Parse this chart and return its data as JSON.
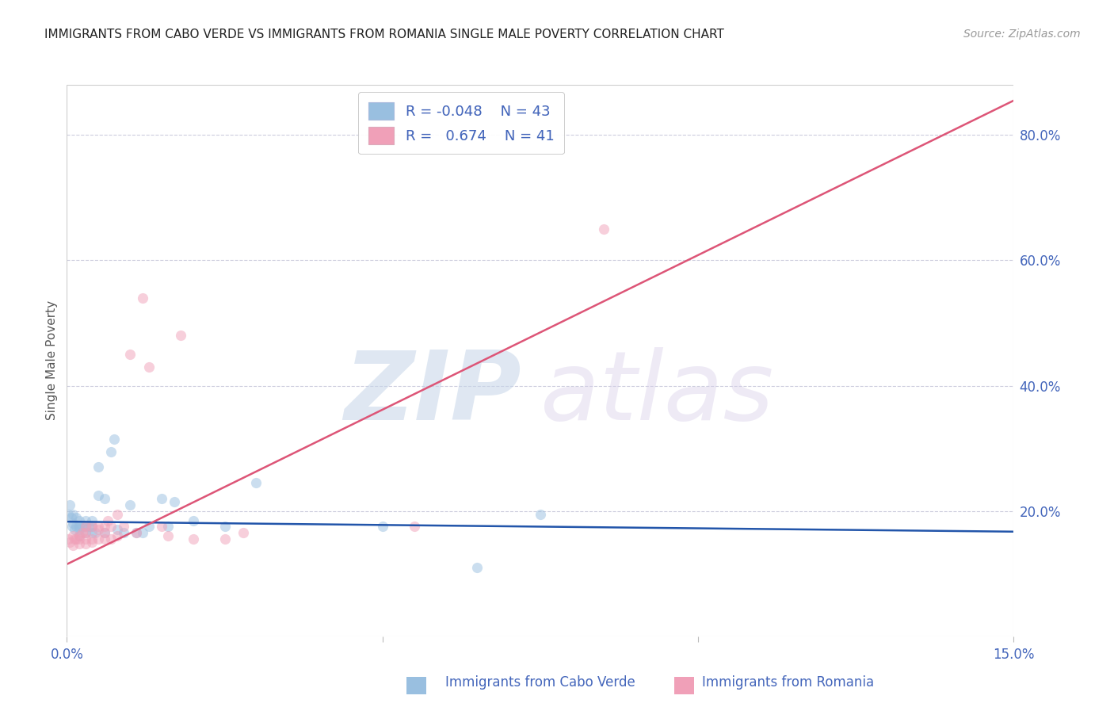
{
  "title": "IMMIGRANTS FROM CABO VERDE VS IMMIGRANTS FROM ROMANIA SINGLE MALE POVERTY CORRELATION CHART",
  "source": "Source: ZipAtlas.com",
  "ylabel": "Single Male Poverty",
  "right_yticks": [
    "80.0%",
    "60.0%",
    "40.0%",
    "20.0%"
  ],
  "right_ytick_vals": [
    0.8,
    0.6,
    0.4,
    0.2
  ],
  "xlim": [
    0.0,
    0.15
  ],
  "ylim": [
    0.0,
    0.88
  ],
  "legend_r1_label": "R = -0.048",
  "legend_n1_label": "N = 43",
  "legend_r2_label": "R =  0.674",
  "legend_n2_label": "N = 41",
  "cabo_verde_color": "#99bfe0",
  "romania_color": "#f0a0b8",
  "cabo_verde_line_color": "#2255aa",
  "romania_line_color": "#dd5577",
  "cabo_verde_scatter": [
    [
      0.0002,
      0.195
    ],
    [
      0.0005,
      0.21
    ],
    [
      0.0007,
      0.19
    ],
    [
      0.0008,
      0.175
    ],
    [
      0.001,
      0.195
    ],
    [
      0.001,
      0.18
    ],
    [
      0.0012,
      0.17
    ],
    [
      0.0015,
      0.19
    ],
    [
      0.0015,
      0.175
    ],
    [
      0.002,
      0.185
    ],
    [
      0.002,
      0.17
    ],
    [
      0.002,
      0.16
    ],
    [
      0.002,
      0.175
    ],
    [
      0.0025,
      0.175
    ],
    [
      0.003,
      0.185
    ],
    [
      0.003,
      0.175
    ],
    [
      0.003,
      0.165
    ],
    [
      0.0035,
      0.175
    ],
    [
      0.004,
      0.175
    ],
    [
      0.004,
      0.165
    ],
    [
      0.004,
      0.185
    ],
    [
      0.0045,
      0.165
    ],
    [
      0.005,
      0.225
    ],
    [
      0.005,
      0.27
    ],
    [
      0.006,
      0.165
    ],
    [
      0.006,
      0.22
    ],
    [
      0.007,
      0.295
    ],
    [
      0.0075,
      0.315
    ],
    [
      0.008,
      0.17
    ],
    [
      0.009,
      0.165
    ],
    [
      0.01,
      0.21
    ],
    [
      0.011,
      0.165
    ],
    [
      0.012,
      0.165
    ],
    [
      0.013,
      0.175
    ],
    [
      0.015,
      0.22
    ],
    [
      0.016,
      0.175
    ],
    [
      0.017,
      0.215
    ],
    [
      0.02,
      0.185
    ],
    [
      0.025,
      0.175
    ],
    [
      0.03,
      0.245
    ],
    [
      0.05,
      0.175
    ],
    [
      0.065,
      0.11
    ],
    [
      0.075,
      0.195
    ]
  ],
  "romania_scatter": [
    [
      0.0002,
      0.155
    ],
    [
      0.0005,
      0.15
    ],
    [
      0.001,
      0.16
    ],
    [
      0.001,
      0.145
    ],
    [
      0.0012,
      0.155
    ],
    [
      0.0015,
      0.155
    ],
    [
      0.002,
      0.16
    ],
    [
      0.002,
      0.148
    ],
    [
      0.002,
      0.155
    ],
    [
      0.0025,
      0.165
    ],
    [
      0.003,
      0.175
    ],
    [
      0.003,
      0.155
    ],
    [
      0.003,
      0.148
    ],
    [
      0.003,
      0.165
    ],
    [
      0.004,
      0.175
    ],
    [
      0.004,
      0.155
    ],
    [
      0.004,
      0.15
    ],
    [
      0.005,
      0.17
    ],
    [
      0.005,
      0.175
    ],
    [
      0.005,
      0.155
    ],
    [
      0.006,
      0.165
    ],
    [
      0.006,
      0.175
    ],
    [
      0.006,
      0.155
    ],
    [
      0.0065,
      0.185
    ],
    [
      0.007,
      0.175
    ],
    [
      0.007,
      0.155
    ],
    [
      0.008,
      0.195
    ],
    [
      0.008,
      0.16
    ],
    [
      0.009,
      0.175
    ],
    [
      0.01,
      0.45
    ],
    [
      0.011,
      0.165
    ],
    [
      0.012,
      0.54
    ],
    [
      0.013,
      0.43
    ],
    [
      0.015,
      0.175
    ],
    [
      0.016,
      0.16
    ],
    [
      0.018,
      0.48
    ],
    [
      0.02,
      0.155
    ],
    [
      0.025,
      0.155
    ],
    [
      0.028,
      0.165
    ],
    [
      0.055,
      0.175
    ],
    [
      0.085,
      0.65
    ]
  ],
  "cabo_verde_trendline": [
    [
      0.0,
      0.183
    ],
    [
      0.15,
      0.167
    ]
  ],
  "romania_trendline": [
    [
      0.0,
      0.115
    ],
    [
      0.15,
      0.855
    ]
  ],
  "watermark_zip": "ZIP",
  "watermark_atlas": "atlas",
  "background_color": "#ffffff",
  "grid_color": "#ccccdd",
  "axis_color": "#4466bb",
  "scatter_size": 90,
  "scatter_alpha": 0.5,
  "line_width": 1.8
}
